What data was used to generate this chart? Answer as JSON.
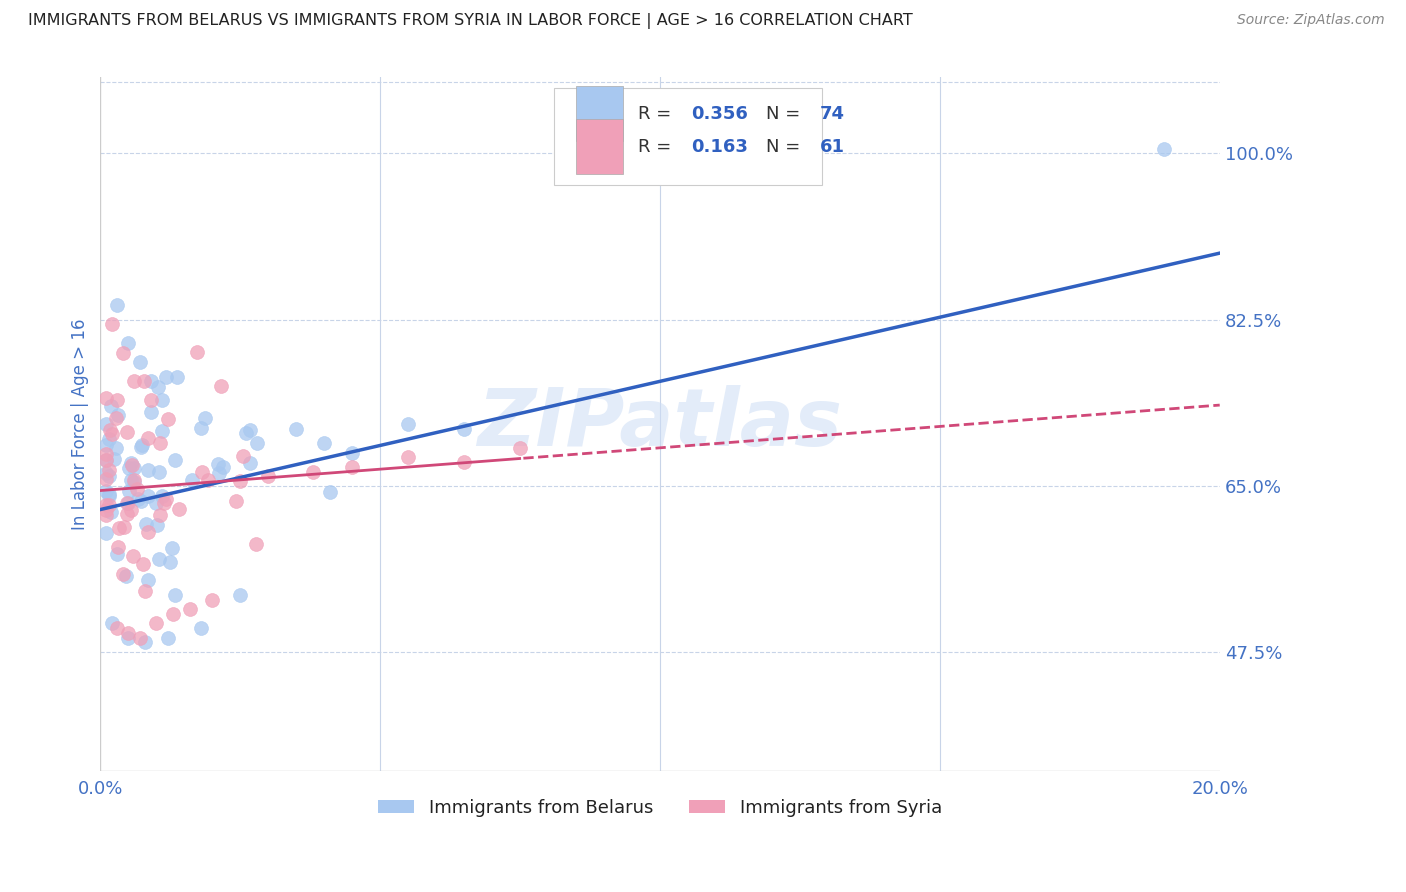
{
  "title": "IMMIGRANTS FROM BELARUS VS IMMIGRANTS FROM SYRIA IN LABOR FORCE | AGE > 16 CORRELATION CHART",
  "source": "Source: ZipAtlas.com",
  "ylabel": "In Labor Force | Age > 16",
  "xlim": [
    0.0,
    0.2
  ],
  "ylim": [
    0.35,
    1.08
  ],
  "xticks": [
    0.0,
    0.05,
    0.1,
    0.15,
    0.2
  ],
  "xticklabels": [
    "0.0%",
    "",
    "",
    "",
    "20.0%"
  ],
  "yticks_right": [
    0.475,
    0.65,
    0.825,
    1.0
  ],
  "ytick_labels_right": [
    "47.5%",
    "65.0%",
    "82.5%",
    "100.0%"
  ],
  "blue_color": "#a8c8f0",
  "blue_line_color": "#3060c0",
  "pink_color": "#f0a0b8",
  "pink_line_color": "#d04878",
  "watermark": "ZIPatlas",
  "watermark_color": "#ccddf5",
  "title_color": "#222222",
  "tick_label_color": "#4472c4",
  "background_color": "#ffffff",
  "grid_color": "#c8d4e8",
  "blue_trend_x0": 0.0,
  "blue_trend_y0": 0.625,
  "blue_trend_x1": 0.2,
  "blue_trend_y1": 0.895,
  "pink_trend_x0": 0.0,
  "pink_trend_y0": 0.645,
  "pink_trend_x1": 0.2,
  "pink_trend_y1": 0.735
}
